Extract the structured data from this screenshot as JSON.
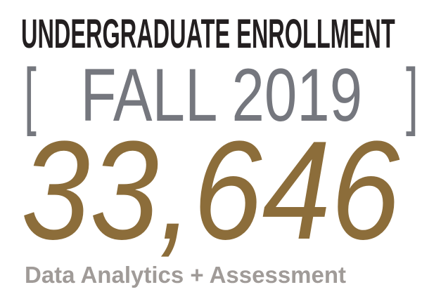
{
  "title": "UNDERGRADUATE ENROLLMENT",
  "term": {
    "open_bracket": "[",
    "label": "FALL 2019",
    "close_bracket": "]"
  },
  "enrollment_count": "33,646",
  "footer": "Data Analytics + Assessment",
  "colors": {
    "title": "#231f20",
    "term": "#75777e",
    "count": "#8c6d3a",
    "footer": "#a09b98"
  }
}
